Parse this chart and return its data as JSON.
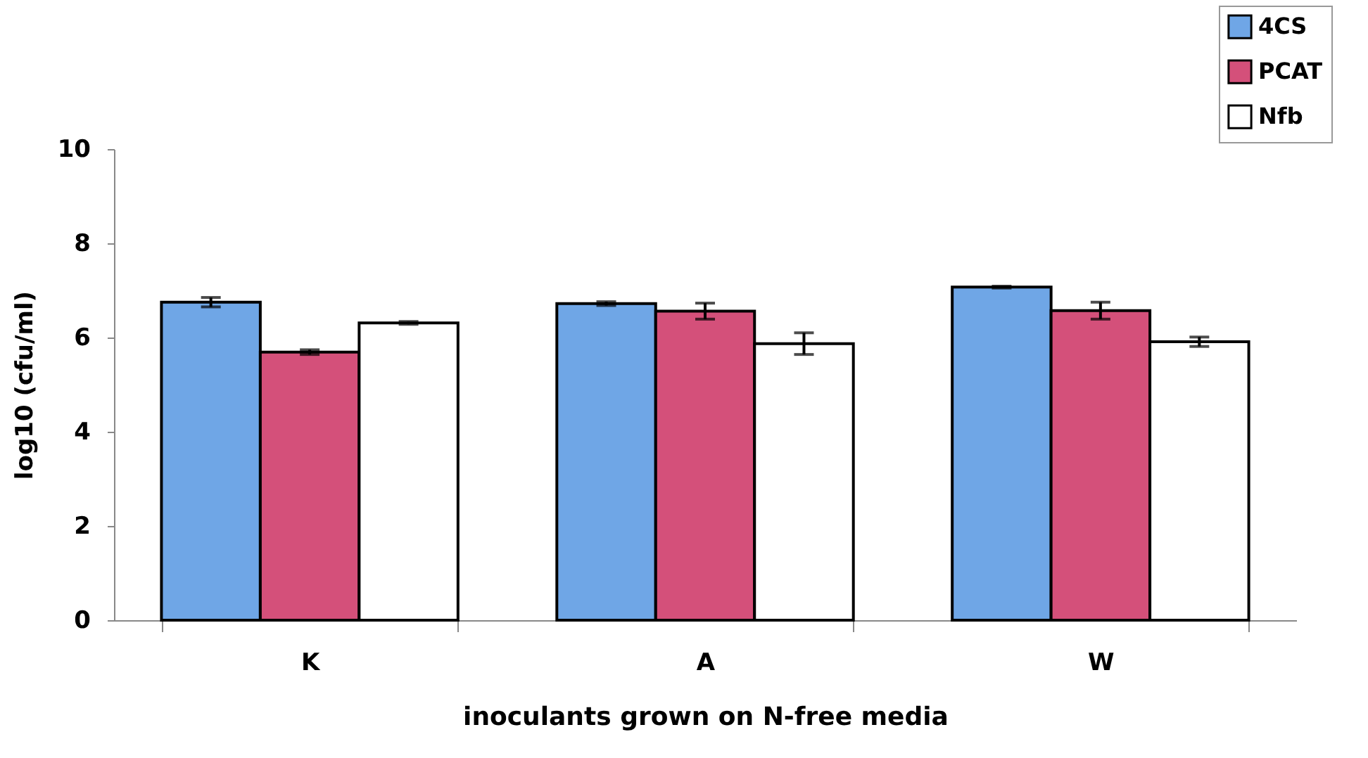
{
  "chart_data": {
    "type": "bar",
    "xlabel": "inoculants grown on  N-free media",
    "ylabel": "log10 (cfu/ml)",
    "categories": [
      "K",
      "A",
      "W"
    ],
    "series": [
      {
        "name": "4CS",
        "color": "#6fa6e6",
        "values": [
          6.75,
          6.72,
          7.07
        ],
        "errors": [
          0.1,
          0.04,
          0.02
        ]
      },
      {
        "name": "PCAT",
        "color": "#d4507a",
        "values": [
          5.69,
          6.56,
          6.57
        ],
        "errors": [
          0.05,
          0.17,
          0.18
        ]
      },
      {
        "name": "Nfb",
        "color": "#ffffff",
        "values": [
          6.31,
          5.87,
          5.91
        ],
        "errors": [
          0.03,
          0.23,
          0.1
        ]
      }
    ],
    "ylim": [
      0,
      10
    ],
    "yticks": [
      0,
      2,
      4,
      6,
      8,
      10
    ],
    "grid": false,
    "legend": "top right"
  }
}
